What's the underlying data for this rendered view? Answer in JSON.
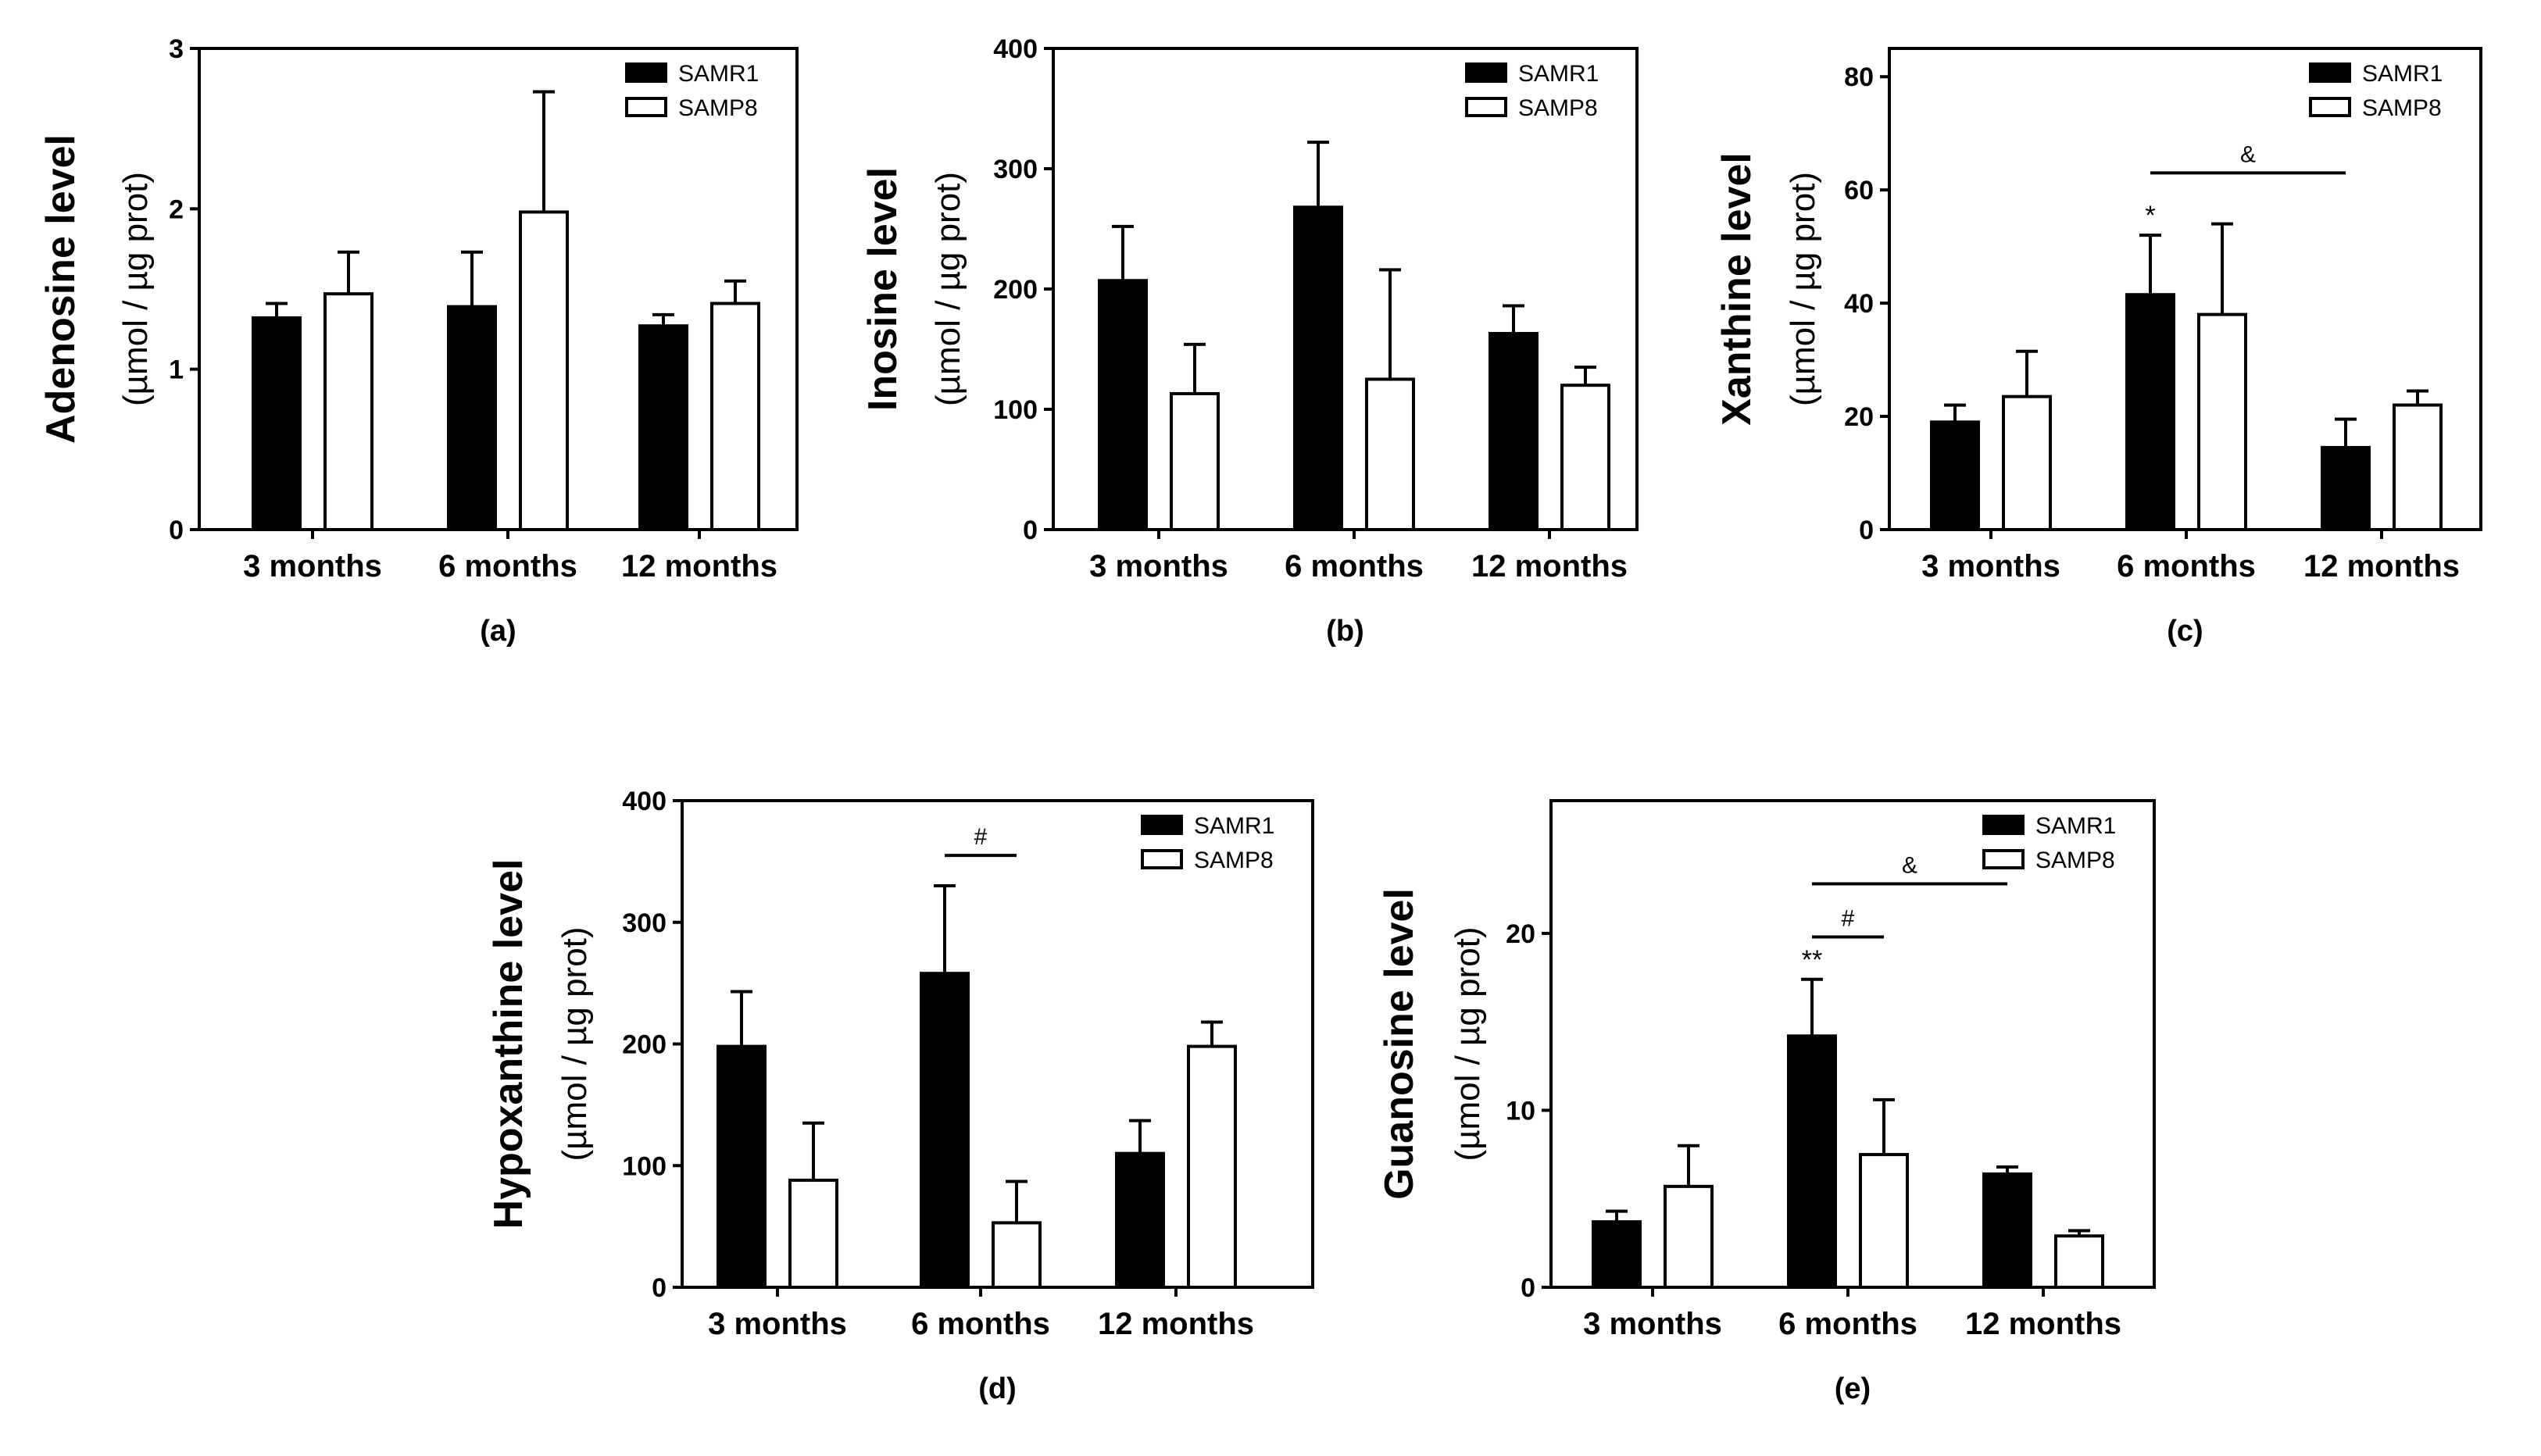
{
  "chart_data": [
    {
      "id": "a",
      "type": "bar",
      "panel_label": "(a)",
      "title": "",
      "ylabel": "Adenosine level",
      "yunit": "(µmol / µg  prot)",
      "categories": [
        "3 months",
        "6 months",
        "12 months"
      ],
      "ylim": [
        0,
        3
      ],
      "yticks": [
        0,
        1,
        2,
        3
      ],
      "legend": {
        "position": "top-right",
        "entries": [
          "SAMR1",
          "SAMP8"
        ]
      },
      "series": [
        {
          "name": "SAMR1",
          "values": [
            1.32,
            1.39,
            1.27
          ],
          "errors": [
            0.09,
            0.34,
            0.07
          ],
          "fill": "#000000"
        },
        {
          "name": "SAMP8",
          "values": [
            1.47,
            1.98,
            1.41
          ],
          "errors": [
            0.26,
            0.75,
            0.14
          ],
          "fill": "#ffffff"
        }
      ],
      "annotations": [],
      "brackets": []
    },
    {
      "id": "b",
      "type": "bar",
      "panel_label": "(b)",
      "title": "",
      "ylabel": "Inosine level",
      "yunit": "(µmol / µg  prot)",
      "categories": [
        "3 months",
        "6 months",
        "12 months"
      ],
      "ylim": [
        0,
        400
      ],
      "yticks": [
        0,
        100,
        200,
        300,
        400
      ],
      "legend": {
        "position": "top-right",
        "entries": [
          "SAMR1",
          "SAMP8"
        ]
      },
      "series": [
        {
          "name": "SAMR1",
          "values": [
            207,
            268,
            163
          ],
          "errors": [
            45,
            54,
            23
          ],
          "fill": "#000000"
        },
        {
          "name": "SAMP8",
          "values": [
            113,
            125,
            120
          ],
          "errors": [
            41,
            91,
            15
          ],
          "fill": "#ffffff"
        }
      ],
      "annotations": [],
      "brackets": []
    },
    {
      "id": "c",
      "type": "bar",
      "panel_label": "(c)",
      "title": "",
      "ylabel": "Xanthine level",
      "yunit": "(µmol / µg  prot)",
      "categories": [
        "3 months",
        "6 months",
        "12 months"
      ],
      "ylim": [
        0,
        85
      ],
      "yticks": [
        0,
        20,
        40,
        60,
        80
      ],
      "legend": {
        "position": "top-right",
        "entries": [
          "SAMR1",
          "SAMP8"
        ]
      },
      "series": [
        {
          "name": "SAMR1",
          "values": [
            19,
            41.5,
            14.5
          ],
          "errors": [
            3,
            10.5,
            5
          ],
          "fill": "#000000"
        },
        {
          "name": "SAMP8",
          "values": [
            23.5,
            38,
            22
          ],
          "errors": [
            8,
            16,
            2.5
          ],
          "fill": "#ffffff"
        }
      ],
      "annotations": [
        {
          "text": "*",
          "category": 1,
          "series": 0
        }
      ],
      "brackets": [
        {
          "text": "&",
          "from": [
            1,
            0
          ],
          "to": [
            2,
            0
          ],
          "y": 63
        }
      ]
    },
    {
      "id": "d",
      "type": "bar",
      "panel_label": "(d)",
      "title": "",
      "ylabel": "Hypoxanthine level",
      "yunit": "(µmol / µg  prot)",
      "categories": [
        "3 months",
        "6 months",
        "12 months"
      ],
      "ylim": [
        0,
        400
      ],
      "yticks": [
        0,
        100,
        200,
        300,
        400
      ],
      "legend": {
        "position": "top-right",
        "entries": [
          "SAMR1",
          "SAMP8"
        ]
      },
      "series": [
        {
          "name": "SAMR1",
          "values": [
            198,
            258,
            110
          ],
          "errors": [
            45,
            72,
            27
          ],
          "fill": "#000000"
        },
        {
          "name": "SAMP8",
          "values": [
            88,
            53,
            198
          ],
          "errors": [
            47,
            34,
            20
          ],
          "fill": "#ffffff"
        }
      ],
      "annotations": [],
      "brackets": [
        {
          "text": "#",
          "from": [
            1,
            0
          ],
          "to": [
            1,
            1
          ],
          "y": 355
        }
      ]
    },
    {
      "id": "e",
      "type": "bar",
      "panel_label": "(e)",
      "title": "",
      "ylabel": "Guanosine level",
      "yunit": "(µmol / µg  prot)",
      "categories": [
        "3 months",
        "6 months",
        "12 months"
      ],
      "ylim": [
        0,
        27.5
      ],
      "yticks": [
        0,
        10,
        20
      ],
      "legend": {
        "position": "top-right",
        "entries": [
          "SAMR1",
          "SAMP8"
        ]
      },
      "series": [
        {
          "name": "SAMR1",
          "values": [
            3.7,
            14.2,
            6.4
          ],
          "errors": [
            0.6,
            3.2,
            0.4
          ],
          "fill": "#000000"
        },
        {
          "name": "SAMP8",
          "values": [
            5.7,
            7.5,
            2.9
          ],
          "errors": [
            2.3,
            3.1,
            0.3
          ],
          "fill": "#ffffff"
        }
      ],
      "annotations": [
        {
          "text": "**",
          "category": 1,
          "series": 0
        }
      ],
      "brackets": [
        {
          "text": "&",
          "from": [
            1,
            0
          ],
          "to": [
            2,
            0
          ],
          "y": 22.8
        },
        {
          "text": "#",
          "from": [
            1,
            0
          ],
          "to": [
            1,
            1
          ],
          "y": 19.8
        }
      ]
    }
  ]
}
